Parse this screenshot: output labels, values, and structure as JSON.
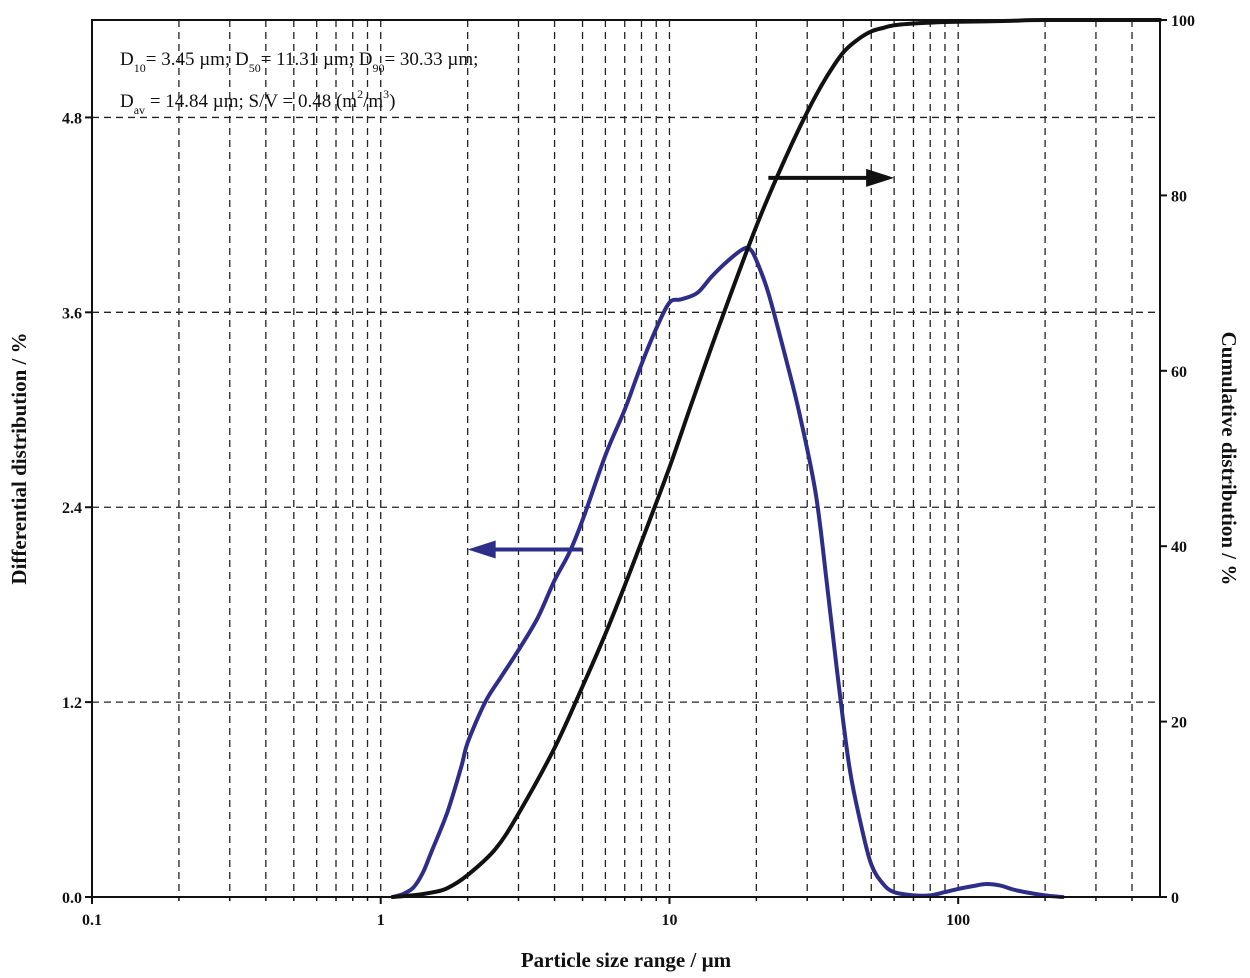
{
  "chart_data": {
    "type": "line",
    "xlabel": "Particle size range / µm",
    "ylabel_left": "Differential distribution / %",
    "ylabel_right": "Cumulative distribution / %",
    "x_scale": "log",
    "xlim": [
      0.1,
      500
    ],
    "ylim_left": [
      0,
      5.4
    ],
    "ylim_right": [
      0,
      100
    ],
    "x_tick_labels": [
      "0.1",
      "1",
      "10",
      "100"
    ],
    "y_left_tick_labels": [
      "0.0",
      "1.2",
      "2.4",
      "3.6",
      "4.8"
    ],
    "y_right_tick_labels": [
      "0",
      "20",
      "40",
      "60",
      "80",
      "100"
    ],
    "grid": "dashed",
    "annotation": {
      "line1": [
        {
          "t": "D"
        },
        {
          "t": "10",
          "sub": true
        },
        {
          "t": "= 3.45 µm; D"
        },
        {
          "t": "50",
          "sub": true
        },
        {
          "t": "= 11.31 µm; D"
        },
        {
          "t": "90",
          "sub": true
        },
        {
          "t": "= 30.33 µm;"
        }
      ],
      "line2": [
        {
          "t": "D"
        },
        {
          "t": "av",
          "sub": true
        },
        {
          "t": " = 14.84 µm; S/V = 0.48 (m"
        },
        {
          "t": "2",
          "sup": true
        },
        {
          "t": "/m"
        },
        {
          "t": "3",
          "sup": true
        },
        {
          "t": ")"
        }
      ]
    },
    "series": [
      {
        "role": "differential",
        "axis": "left",
        "color": "#2e2e8a",
        "x": [
          1.1,
          1.2,
          1.3,
          1.4,
          1.5,
          1.7,
          1.9,
          2.0,
          2.3,
          2.6,
          3.0,
          3.5,
          4.0,
          4.5,
          5.0,
          6.0,
          7.0,
          8.0,
          9.0,
          10.0,
          11.0,
          12.5,
          14.0,
          16.0,
          18.0,
          19.0,
          20.0,
          22.0,
          25.0,
          28.0,
          32.0,
          35.0,
          38.0,
          42.0,
          46.0,
          50.0,
          55.0,
          60.0,
          70.0,
          80.0,
          90.0,
          100.0,
          115.0,
          125.0,
          140.0,
          160.0,
          200.0,
          230.0
        ],
        "y": [
          0.0,
          0.02,
          0.06,
          0.15,
          0.28,
          0.52,
          0.8,
          0.95,
          1.2,
          1.35,
          1.52,
          1.72,
          1.95,
          2.12,
          2.32,
          2.72,
          3.0,
          3.28,
          3.5,
          3.66,
          3.68,
          3.72,
          3.82,
          3.92,
          3.99,
          3.99,
          3.92,
          3.72,
          3.35,
          3.0,
          2.5,
          1.95,
          1.4,
          0.8,
          0.45,
          0.2,
          0.08,
          0.03,
          0.01,
          0.01,
          0.03,
          0.05,
          0.07,
          0.08,
          0.07,
          0.04,
          0.01,
          0.0
        ]
      },
      {
        "role": "cumulative",
        "axis": "right",
        "color": "#111111",
        "x": [
          1.1,
          1.3,
          1.5,
          1.7,
          2.0,
          2.5,
          3.0,
          4.0,
          5.0,
          6.0,
          7.0,
          8.0,
          10.0,
          12.0,
          15.0,
          20.0,
          25.0,
          30.0,
          35.0,
          40.0,
          45.0,
          50.0,
          55.0,
          60.0,
          70.0,
          80.0,
          100.0,
          150.0,
          200.0,
          500.0
        ],
        "y": [
          0.0,
          0.2,
          0.5,
          1.0,
          2.5,
          5.5,
          9.5,
          17.0,
          24.0,
          30.0,
          35.5,
          40.5,
          49.0,
          56.5,
          65.5,
          76.5,
          84.0,
          89.5,
          93.5,
          96.3,
          97.8,
          98.7,
          99.1,
          99.4,
          99.6,
          99.7,
          99.8,
          99.9,
          100.0,
          100.0
        ]
      }
    ],
    "arrows": [
      {
        "points_to": "left",
        "color": "#2e2e8a",
        "y": 2.14,
        "x_from": 5.0,
        "x_to": 2.0
      },
      {
        "points_to": "right",
        "color": "#111111",
        "y": 82.0,
        "x_from": 22.0,
        "x_to": 60.0
      }
    ]
  }
}
